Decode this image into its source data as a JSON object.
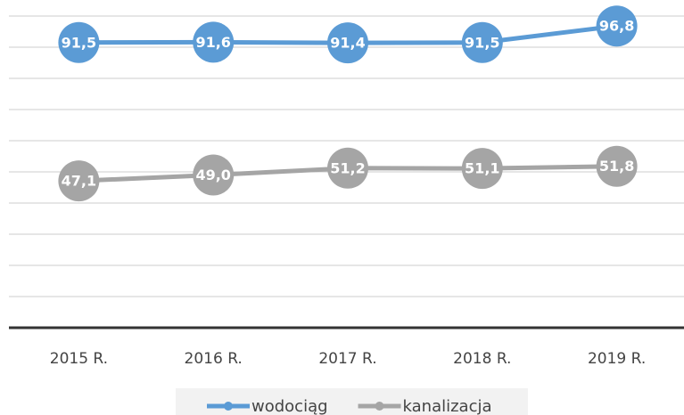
{
  "chart_data": {
    "type": "line",
    "categories": [
      "2015 R.",
      "2016 R.",
      "2017 R.",
      "2018 R.",
      "2019 R."
    ],
    "series": [
      {
        "name": "wodociąg",
        "color": "#5b9bd5",
        "values": [
          91.5,
          91.6,
          91.4,
          91.5,
          96.8
        ],
        "value_labels": [
          "91,5",
          "91,6",
          "91,4",
          "91,5",
          "96,8"
        ]
      },
      {
        "name": "kanalizacja",
        "color": "#a5a5a5",
        "values": [
          47.1,
          49.0,
          51.2,
          51.1,
          51.8
        ],
        "value_labels": [
          "47,1",
          "49,0",
          "51,2",
          "51,1",
          "51,8"
        ]
      }
    ],
    "ylim": [
      0,
      100
    ],
    "yticks": [
      0,
      10,
      20,
      30,
      40,
      50,
      60,
      70,
      80,
      90,
      100
    ],
    "grid": true,
    "legend": "bottom"
  }
}
